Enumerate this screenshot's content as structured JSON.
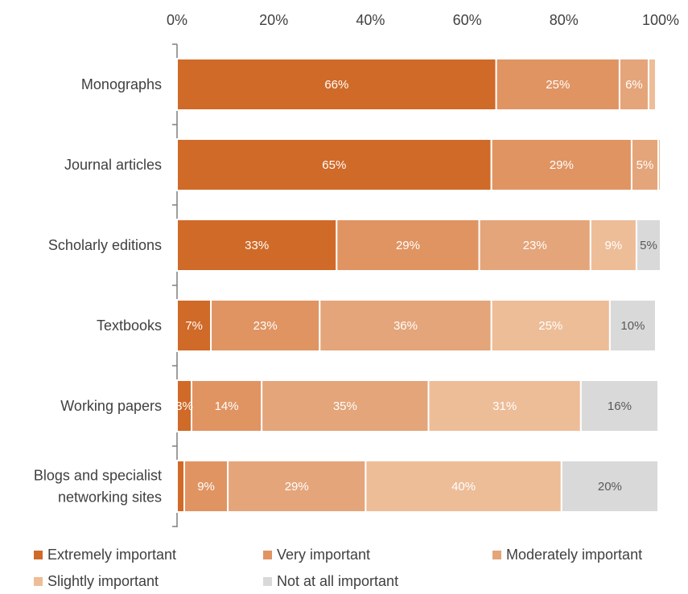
{
  "chart_data": {
    "type": "bar",
    "orientation": "horizontal",
    "stacked": "percent",
    "axis": {
      "position": "top",
      "ticks": [
        "0%",
        "20%",
        "40%",
        "60%",
        "80%",
        "100%"
      ],
      "xlim": [
        0,
        100
      ],
      "grid": false
    },
    "categories": [
      [
        "Monographs"
      ],
      [
        "Journal articles"
      ],
      [
        "Scholarly editions"
      ],
      [
        "Textbooks"
      ],
      [
        "Working papers"
      ],
      [
        "Blogs and specialist",
        "networking sites"
      ]
    ],
    "series": [
      {
        "name": "Extremely important",
        "color": "#D06A28",
        "values": [
          66,
          65,
          33,
          7,
          3,
          1.5
        ],
        "labels": [
          "66%",
          "65%",
          "33%",
          "7%",
          "3%",
          ""
        ]
      },
      {
        "name": "Very important",
        "color": "#E09462",
        "values": [
          25.5,
          29,
          29.5,
          22.5,
          14.5,
          9
        ],
        "labels": [
          "25%",
          "29%",
          "29%",
          "23%",
          "14%",
          "9%"
        ]
      },
      {
        "name": "Moderately important",
        "color": "#E4A57A",
        "values": [
          6,
          5.5,
          23,
          35.5,
          34.5,
          28.5
        ],
        "labels": [
          "6%",
          "5%",
          "23%",
          "36%",
          "35%",
          "29%"
        ]
      },
      {
        "name": "Slightly important",
        "color": "#EDBD98",
        "values": [
          1.5,
          0.5,
          9.5,
          24.5,
          31.5,
          40.5
        ],
        "labels": [
          "",
          "",
          "9%",
          "25%",
          "31%",
          "40%"
        ]
      },
      {
        "name": "Not at all important",
        "color": "#D9D9D9",
        "values": [
          0,
          0,
          5,
          9.5,
          16,
          20
        ],
        "labels": [
          "",
          "",
          "5%",
          "10%",
          "16%",
          "20%"
        ]
      }
    ],
    "legend": {
      "position": "bottom"
    }
  }
}
